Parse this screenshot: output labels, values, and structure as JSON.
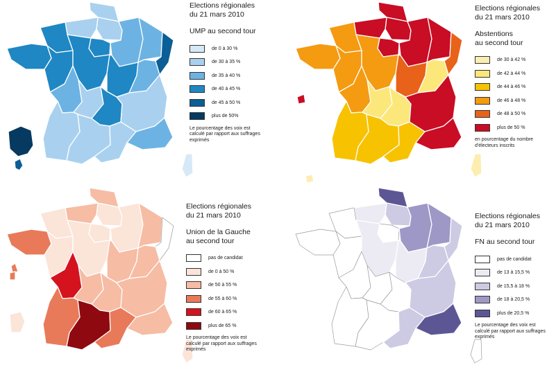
{
  "panels": [
    {
      "key": "ump",
      "title_line1": "Elections régionales",
      "title_line2": "du 21 mars 2010",
      "subtitle_line1": "UMP au second tour",
      "subtitle_line2": "",
      "legend": [
        {
          "label": "de 0 à 30 %",
          "color": "#d7e9f7"
        },
        {
          "label": "de 30 à 35 %",
          "color": "#a9d1ef"
        },
        {
          "label": "de 35 à 40 %",
          "color": "#6cb3e3"
        },
        {
          "label": "de 40 à 45 %",
          "color": "#1f87c3"
        },
        {
          "label": "de 45 à 50 %",
          "color": "#0b5e96"
        },
        {
          "label": "plus de 50%",
          "color": "#063a60"
        }
      ],
      "note": "Le pourcentage des voix est calculé par rapport aux suffrages exprimés"
    },
    {
      "key": "abstentions",
      "title_line1": "Elections régionales",
      "title_line2": "du 21 mars 2010",
      "subtitle_line1": "Abstentions",
      "subtitle_line2": "au second tour",
      "legend": [
        {
          "label": "de 30 à 42 %",
          "color": "#fbeeb0"
        },
        {
          "label": "de 42 à 44 %",
          "color": "#fce77a"
        },
        {
          "label": "de 44 à 46 %",
          "color": "#f7c200"
        },
        {
          "label": "de 46 à 48 %",
          "color": "#f49b12"
        },
        {
          "label": "de 48 à 50 %",
          "color": "#e8621a"
        },
        {
          "label": "plus de 50 %",
          "color": "#c90d24"
        }
      ],
      "note": "en pourcentage du nombre d'électeurs inscrits"
    },
    {
      "key": "gauche",
      "title_line1": "Elections régionales",
      "title_line2": "du 21 mars 2010",
      "subtitle_line1": "Union de la Gauche",
      "subtitle_line2": "au second tour",
      "legend": [
        {
          "label": "pas de candidat",
          "color": "#ffffff"
        },
        {
          "label": "de 0 à 50 %",
          "color": "#fbe4d8"
        },
        {
          "label": "de 50 à 55 %",
          "color": "#f6bca4"
        },
        {
          "label": "de 55 à 60 %",
          "color": "#e87a5a"
        },
        {
          "label": "de 60 à 65 %",
          "color": "#d4131f"
        },
        {
          "label": "plus de 65 %",
          "color": "#8f0a10"
        }
      ],
      "note": "Le pourcentage des voix est calculé par rapport aux suffrages exprimés"
    },
    {
      "key": "fn",
      "title_line1": "Elections régionales",
      "title_line2": "du 21 mars 2010",
      "subtitle_line1": "FN  au second tour",
      "subtitle_line2": "",
      "legend": [
        {
          "label": "pas de candidat",
          "color": "#ffffff"
        },
        {
          "label": "de 13 à 15,5 %",
          "color": "#ecebf4"
        },
        {
          "label": "de 15,5 à 18 %",
          "color": "#cdcae3"
        },
        {
          "label": "de 18 à 20,5 %",
          "color": "#9d98c6"
        },
        {
          "label": "plus de 20,5 %",
          "color": "#5c5794"
        }
      ],
      "note": "Le pourcentage des voix est calculé par rapport aux suffrages exprimés"
    }
  ],
  "region_classes": {
    "ump": {
      "NPC": 1,
      "PIC": 1,
      "HN": 1,
      "IDF": 3,
      "CA": 2,
      "LOR": 2,
      "ALS": 4,
      "BN": 3,
      "BRE": 3,
      "PDL": 3,
      "CEN": 3,
      "BOU": 3,
      "FC": 2,
      "PC": 2,
      "LIM": 1,
      "AUV": 3,
      "RA": 1,
      "AQ": 1,
      "MP": 1,
      "LR": 1,
      "PACA": 2,
      "COR": 0,
      "GUA": 5,
      "MAR": 2,
      "GUY": 1,
      "REU": 4
    },
    "abstentions": {
      "NPC": 5,
      "PIC": 5,
      "HN": 5,
      "IDF": 5,
      "CA": 5,
      "LOR": 5,
      "ALS": 4,
      "BN": 3,
      "BRE": 3,
      "PDL": 3,
      "CEN": 3,
      "BOU": 4,
      "FC": 1,
      "PC": 3,
      "LIM": 1,
      "AUV": 1,
      "RA": 5,
      "AQ": 2,
      "MP": 2,
      "LR": 2,
      "PACA": 5,
      "COR": 0,
      "GUA": 4,
      "MAR": 5,
      "GUY": 4,
      "REU": 0
    },
    "gauche": {
      "NPC": 2,
      "PIC": 1,
      "HN": 2,
      "IDF": 1,
      "CA": 1,
      "LOR": 2,
      "ALS": 0,
      "BN": 1,
      "BRE": 3,
      "PDL": 1,
      "CEN": 1,
      "BOU": 2,
      "FC": 2,
      "PC": 4,
      "LIM": 2,
      "AUV": 2,
      "RA": 2,
      "AQ": 3,
      "MP": 5,
      "LR": 3,
      "PACA": 2,
      "COR": 1,
      "GUA": 2,
      "MAR": 3,
      "GUY": 3,
      "REU": 1
    },
    "fn": {
      "NPC": 4,
      "PIC": 2,
      "HN": 1,
      "IDF": 0,
      "CA": 3,
      "LOR": 3,
      "ALS": 2,
      "BN": 0,
      "BRE": 0,
      "PDL": 0,
      "CEN": 1,
      "BOU": 1,
      "FC": 2,
      "PC": 0,
      "LIM": 0,
      "AUV": 0,
      "RA": 2,
      "AQ": 0,
      "MP": 0,
      "LR": 2,
      "PACA": 4,
      "COR": 0,
      "GUA": 0,
      "MAR": 0,
      "GUY": 0,
      "REU": 0
    }
  }
}
